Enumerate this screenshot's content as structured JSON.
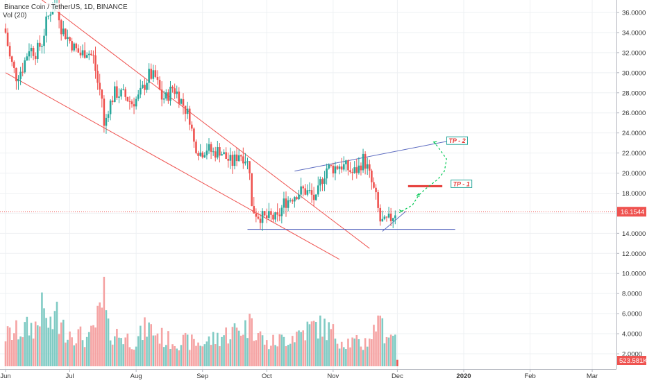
{
  "header": {
    "title": "Binance Coin / TetherUS, 1D, BINANCE",
    "volume_label": "Vol (20)"
  },
  "chart_data": {
    "type": "candlestick",
    "price_axis": {
      "ylim": [
        0,
        37.2
      ],
      "ticks": [
        "36.0000",
        "34.0000",
        "32.0000",
        "30.0000",
        "28.0000",
        "26.0000",
        "24.0000",
        "22.0000",
        "20.0000",
        "18.0000",
        "16.0000",
        "14.0000",
        "12.0000",
        "10.0000",
        "8.0000",
        "6.0000",
        "4.0000",
        "2.0000"
      ]
    },
    "x_axis": {
      "tick_labels": [
        "Jun",
        "Jul",
        "Aug",
        "Sep",
        "Oct",
        "Nov",
        "Dec",
        "2020",
        "Feb",
        "Mar"
      ],
      "tick_dates": [
        "2019-06-01",
        "2019-07-01",
        "2019-08-01",
        "2019-09-01",
        "2019-10-01",
        "2019-11-01",
        "2019-12-01",
        "2020-01-01",
        "2020-02-01",
        "2020-03-01"
      ]
    },
    "current_price": {
      "value": 16.1544,
      "label": "16.1544",
      "color": "#ef5350"
    },
    "current_volume": {
      "label": "523.581K",
      "color": "#ef5350"
    },
    "colors": {
      "up": "#26a69a",
      "down": "#ef5350",
      "vol_up": "#80cbc4",
      "vol_down": "#f5a3a3"
    },
    "price_path": [
      [
        "2019-06-01",
        34.0
      ],
      [
        "2019-06-03",
        31.5
      ],
      [
        "2019-06-06",
        29.6
      ],
      [
        "2019-06-09",
        30.5
      ],
      [
        "2019-06-12",
        32.5
      ],
      [
        "2019-06-15",
        32.0
      ],
      [
        "2019-06-18",
        33.0
      ],
      [
        "2019-06-20",
        35.0
      ],
      [
        "2019-06-22",
        36.2
      ],
      [
        "2019-06-25",
        37.0
      ],
      [
        "2019-06-27",
        34.5
      ],
      [
        "2019-06-30",
        33.5
      ],
      [
        "2019-07-03",
        32.5
      ],
      [
        "2019-07-06",
        31.8
      ],
      [
        "2019-07-09",
        32.2
      ],
      [
        "2019-07-12",
        31.5
      ],
      [
        "2019-07-14",
        29.0
      ],
      [
        "2019-07-16",
        27.5
      ],
      [
        "2019-07-17",
        24.5
      ],
      [
        "2019-07-19",
        26.5
      ],
      [
        "2019-07-22",
        28.0
      ],
      [
        "2019-07-26",
        27.8
      ],
      [
        "2019-07-30",
        27.0
      ],
      [
        "2019-08-02",
        27.5
      ],
      [
        "2019-08-05",
        28.8
      ],
      [
        "2019-08-07",
        29.8
      ],
      [
        "2019-08-10",
        29.5
      ],
      [
        "2019-08-13",
        27.5
      ],
      [
        "2019-08-15",
        27.5
      ],
      [
        "2019-08-18",
        28.5
      ],
      [
        "2019-08-20",
        28.0
      ],
      [
        "2019-08-23",
        26.8
      ],
      [
        "2019-08-26",
        25.5
      ],
      [
        "2019-08-28",
        23.0
      ],
      [
        "2019-08-31",
        22.0
      ],
      [
        "2019-09-03",
        22.5
      ],
      [
        "2019-09-06",
        22.0
      ],
      [
        "2019-09-09",
        22.3
      ],
      [
        "2019-09-12",
        21.5
      ],
      [
        "2019-09-15",
        21.0
      ],
      [
        "2019-09-18",
        22.0
      ],
      [
        "2019-09-21",
        21.5
      ],
      [
        "2019-09-23",
        20.5
      ],
      [
        "2019-09-24",
        16.5
      ],
      [
        "2019-09-27",
        15.8
      ],
      [
        "2019-09-30",
        15.5
      ],
      [
        "2019-10-03",
        15.6
      ],
      [
        "2019-10-06",
        15.4
      ],
      [
        "2019-10-09",
        17.0
      ],
      [
        "2019-10-12",
        17.5
      ],
      [
        "2019-10-15",
        18.0
      ],
      [
        "2019-10-18",
        18.3
      ],
      [
        "2019-10-21",
        18.0
      ],
      [
        "2019-10-24",
        17.2
      ],
      [
        "2019-10-26",
        19.0
      ],
      [
        "2019-10-29",
        20.5
      ],
      [
        "2019-11-01",
        20.5
      ],
      [
        "2019-11-04",
        20.8
      ],
      [
        "2019-11-07",
        20.6
      ],
      [
        "2019-11-10",
        20.0
      ],
      [
        "2019-11-13",
        20.5
      ],
      [
        "2019-11-15",
        21.4
      ],
      [
        "2019-11-17",
        20.5
      ],
      [
        "2019-11-19",
        19.0
      ],
      [
        "2019-11-21",
        17.5
      ],
      [
        "2019-11-23",
        15.2
      ],
      [
        "2019-11-25",
        15.0
      ],
      [
        "2019-11-28",
        15.5
      ],
      [
        "2019-11-30",
        16.15
      ]
    ],
    "volume_path": [
      [
        "2019-06-01",
        3.5
      ],
      [
        "2019-06-20",
        5.0
      ],
      [
        "2019-07-01",
        4.0
      ],
      [
        "2019-07-10",
        3.0
      ],
      [
        "2019-07-17",
        7.0
      ],
      [
        "2019-07-19",
        4.0
      ],
      [
        "2019-08-01",
        2.8
      ],
      [
        "2019-08-06",
        4.5
      ],
      [
        "2019-08-15",
        3.0
      ],
      [
        "2019-09-01",
        2.6
      ],
      [
        "2019-09-24",
        4.8
      ],
      [
        "2019-10-01",
        2.5
      ],
      [
        "2019-10-10",
        3.2
      ],
      [
        "2019-10-26",
        4.8
      ],
      [
        "2019-11-05",
        3.0
      ],
      [
        "2019-11-15",
        2.5
      ],
      [
        "2019-11-22",
        4.5
      ],
      [
        "2019-11-29",
        3.5
      ]
    ],
    "volume_spikes": [
      [
        "2019-07-17",
        9.7
      ],
      [
        "2019-06-18",
        8.0
      ],
      [
        "2019-06-25",
        7.0
      ],
      [
        "2019-09-24",
        5.2
      ],
      [
        "2019-10-26",
        5.5
      ],
      [
        "2019-11-22",
        5.5
      ],
      [
        "2019-11-24",
        5.2
      ]
    ],
    "trendlines": [
      {
        "name": "upper-falling",
        "color": "#ef5350",
        "from": [
          "2019-06-01",
          40.0
        ],
        "to": [
          "2019-11-18",
          12.5
        ]
      },
      {
        "name": "lower-falling",
        "color": "#ef5350",
        "from": [
          "2019-06-01",
          30.0
        ],
        "to": [
          "2019-11-04",
          11.4
        ]
      },
      {
        "name": "support",
        "color": "#3f51b5",
        "from": [
          "2019-09-22",
          14.4
        ],
        "to": [
          "2019-12-28",
          14.4
        ]
      },
      {
        "name": "rising-top",
        "color": "#5c6bc0",
        "from": [
          "2019-10-14",
          20.2
        ],
        "to": [
          "2019-12-25",
          23.2
        ]
      },
      {
        "name": "rising-bottom",
        "color": "#5c6bc0",
        "from": [
          "2019-11-24",
          14.2
        ],
        "to": [
          "2019-12-05",
          16.2
        ]
      }
    ],
    "annotations": [
      {
        "label": "TP - 2",
        "x": "2019-12-26",
        "y": 23.2
      },
      {
        "label": "TP - 1",
        "x": "2019-12-28",
        "y": 18.9
      }
    ],
    "tp1_level": {
      "from": "2019-12-06",
      "to": "2019-12-22",
      "y": 18.7,
      "color": "#e53935"
    },
    "projection": {
      "color": "#00c853",
      "points": [
        [
          "2019-12-03",
          16.2
        ],
        [
          "2019-12-08",
          16.8
        ],
        [
          "2019-12-11",
          17.8
        ],
        [
          "2019-12-14",
          18.4
        ],
        [
          "2019-12-20",
          19.4
        ],
        [
          "2019-12-23",
          20.2
        ],
        [
          "2019-12-24",
          21.4
        ],
        [
          "2019-12-20",
          22.6
        ],
        [
          "2019-12-18",
          23.1
        ]
      ]
    }
  }
}
